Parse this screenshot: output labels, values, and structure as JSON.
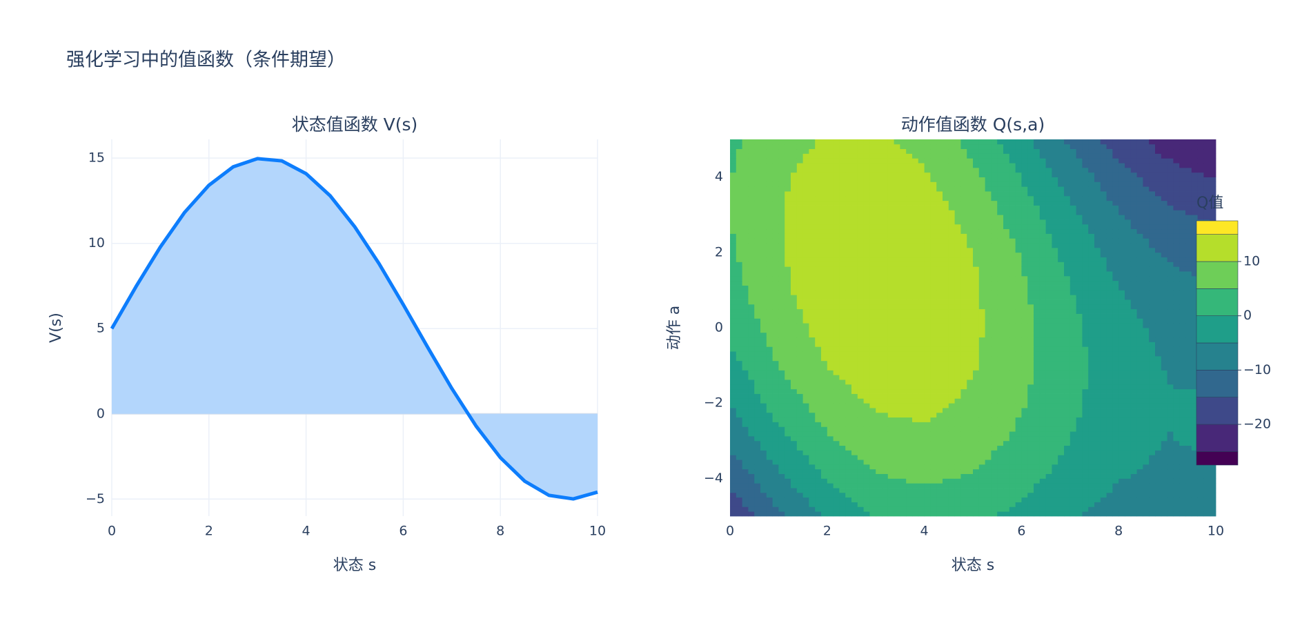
{
  "title": "强化学习中的值函数（条件期望）",
  "chart_data": [
    {
      "type": "line",
      "title": "状态值函数 V(s)",
      "x_label": "状态 s",
      "y_label": "V(s)",
      "x": [
        0,
        0.5,
        1,
        1.5,
        2,
        2.5,
        3,
        3.5,
        4,
        4.5,
        5,
        5.5,
        6,
        6.5,
        7,
        7.5,
        8,
        8.5,
        9,
        9.5,
        10
      ],
      "values": [
        5,
        7.47,
        9.79,
        11.82,
        13.41,
        14.49,
        14.97,
        14.84,
        14.09,
        12.78,
        10.98,
        8.82,
        6.41,
        3.92,
        1.49,
        -0.72,
        -2.57,
        -3.95,
        -4.78,
        -4.99,
        -4.59
      ],
      "color": "#0d7dfc",
      "fill": "tozeroy",
      "fill_color": "#b3d6fc",
      "xlim": [
        0,
        10
      ],
      "ylim": [
        -6.0,
        16.1
      ],
      "xticks": [
        0,
        2,
        4,
        6,
        8,
        10
      ],
      "yticks": [
        {
          "value": -5,
          "label": "−5"
        },
        0,
        5,
        10,
        15
      ],
      "grid": true
    },
    {
      "type": "contour",
      "title": "动作值函数 Q(s,a)",
      "x_label": "状态 s",
      "y_label": "动作 a",
      "x": [
        0,
        1,
        2,
        3,
        4,
        5,
        6,
        7,
        8,
        9,
        10
      ],
      "y": [
        -5,
        -4,
        -3,
        -2,
        -1,
        0,
        1,
        2,
        3,
        4,
        5
      ],
      "z": [
        [
          -19.1,
          -11.0,
          -4.2,
          0.2,
          1.9,
          1.2,
          -1.3,
          -4.4,
          -6.9,
          -7.7,
          -6.4
        ],
        [
          -13.7,
          -5.9,
          0.4,
          4.4,
          5.7,
          4.5,
          1.6,
          -1.9,
          -4.8,
          -6.0,
          -5.2
        ],
        [
          -8.9,
          -1.6,
          4.3,
          7.9,
          8.8,
          7.2,
          3.9,
          -0.1,
          -3.4,
          -5.1,
          -4.6
        ],
        [
          -4.8,
          2.1,
          7.5,
          10.7,
          11.2,
          9.1,
          5.4,
          1.1,
          -2.7,
          -4.8,
          -4.8
        ],
        [
          -1.5,
          5.0,
          10.1,
          12.8,
          12.8,
          10.4,
          6.2,
          1.5,
          -2.7,
          -5.2,
          -5.6
        ],
        [
          1.2,
          7.2,
          11.9,
          14.2,
          13.8,
          11.0,
          6.4,
          1.2,
          -3.4,
          -6.3,
          -7.1
        ],
        [
          3.1,
          8.8,
          13.0,
          14.9,
          14.1,
          10.8,
          5.8,
          0.2,
          -4.8,
          -8.1,
          -9.4
        ],
        [
          4.4,
          9.6,
          13.4,
          14.9,
          13.7,
          10.0,
          4.6,
          -1.5,
          -6.9,
          -10.7,
          -12.3
        ],
        [
          5.0,
          9.8,
          13.1,
          14.2,
          12.6,
          8.4,
          2.6,
          -3.8,
          -9.7,
          -13.9,
          -16.0
        ],
        [
          4.8,
          9.2,
          12.2,
          12.8,
          10.7,
          6.2,
          -0.1,
          -6.9,
          -13.2,
          -17.8,
          -20.3
        ],
        [
          4.0,
          7.9,
          10.5,
          10.7,
          8.2,
          3.3,
          -3.4,
          -10.7,
          -17.4,
          -22.4,
          -25.3
        ]
      ],
      "levels": [
        -25,
        -20,
        -15,
        -10,
        -5,
        0,
        5,
        10,
        15
      ],
      "colors": [
        "#440154",
        "#482878",
        "#3e4989",
        "#31688e",
        "#26828e",
        "#1f9e89",
        "#35b779",
        "#6ece58",
        "#b5de2b",
        "#fde725"
      ],
      "colorbar_title": "Q值",
      "zlim": [
        -27.5,
        17.5
      ],
      "zticks": [
        {
          "value": -20,
          "label": "−20"
        },
        {
          "value": -10,
          "label": "−10"
        },
        0,
        10
      ],
      "xlim": [
        0,
        10
      ],
      "ylim": [
        -5,
        5
      ],
      "xticks": [
        0,
        2,
        4,
        6,
        8,
        10
      ],
      "yticks": [
        {
          "value": -4,
          "label": "−4"
        },
        {
          "value": -2,
          "label": "−2"
        },
        0,
        2,
        4
      ]
    }
  ]
}
